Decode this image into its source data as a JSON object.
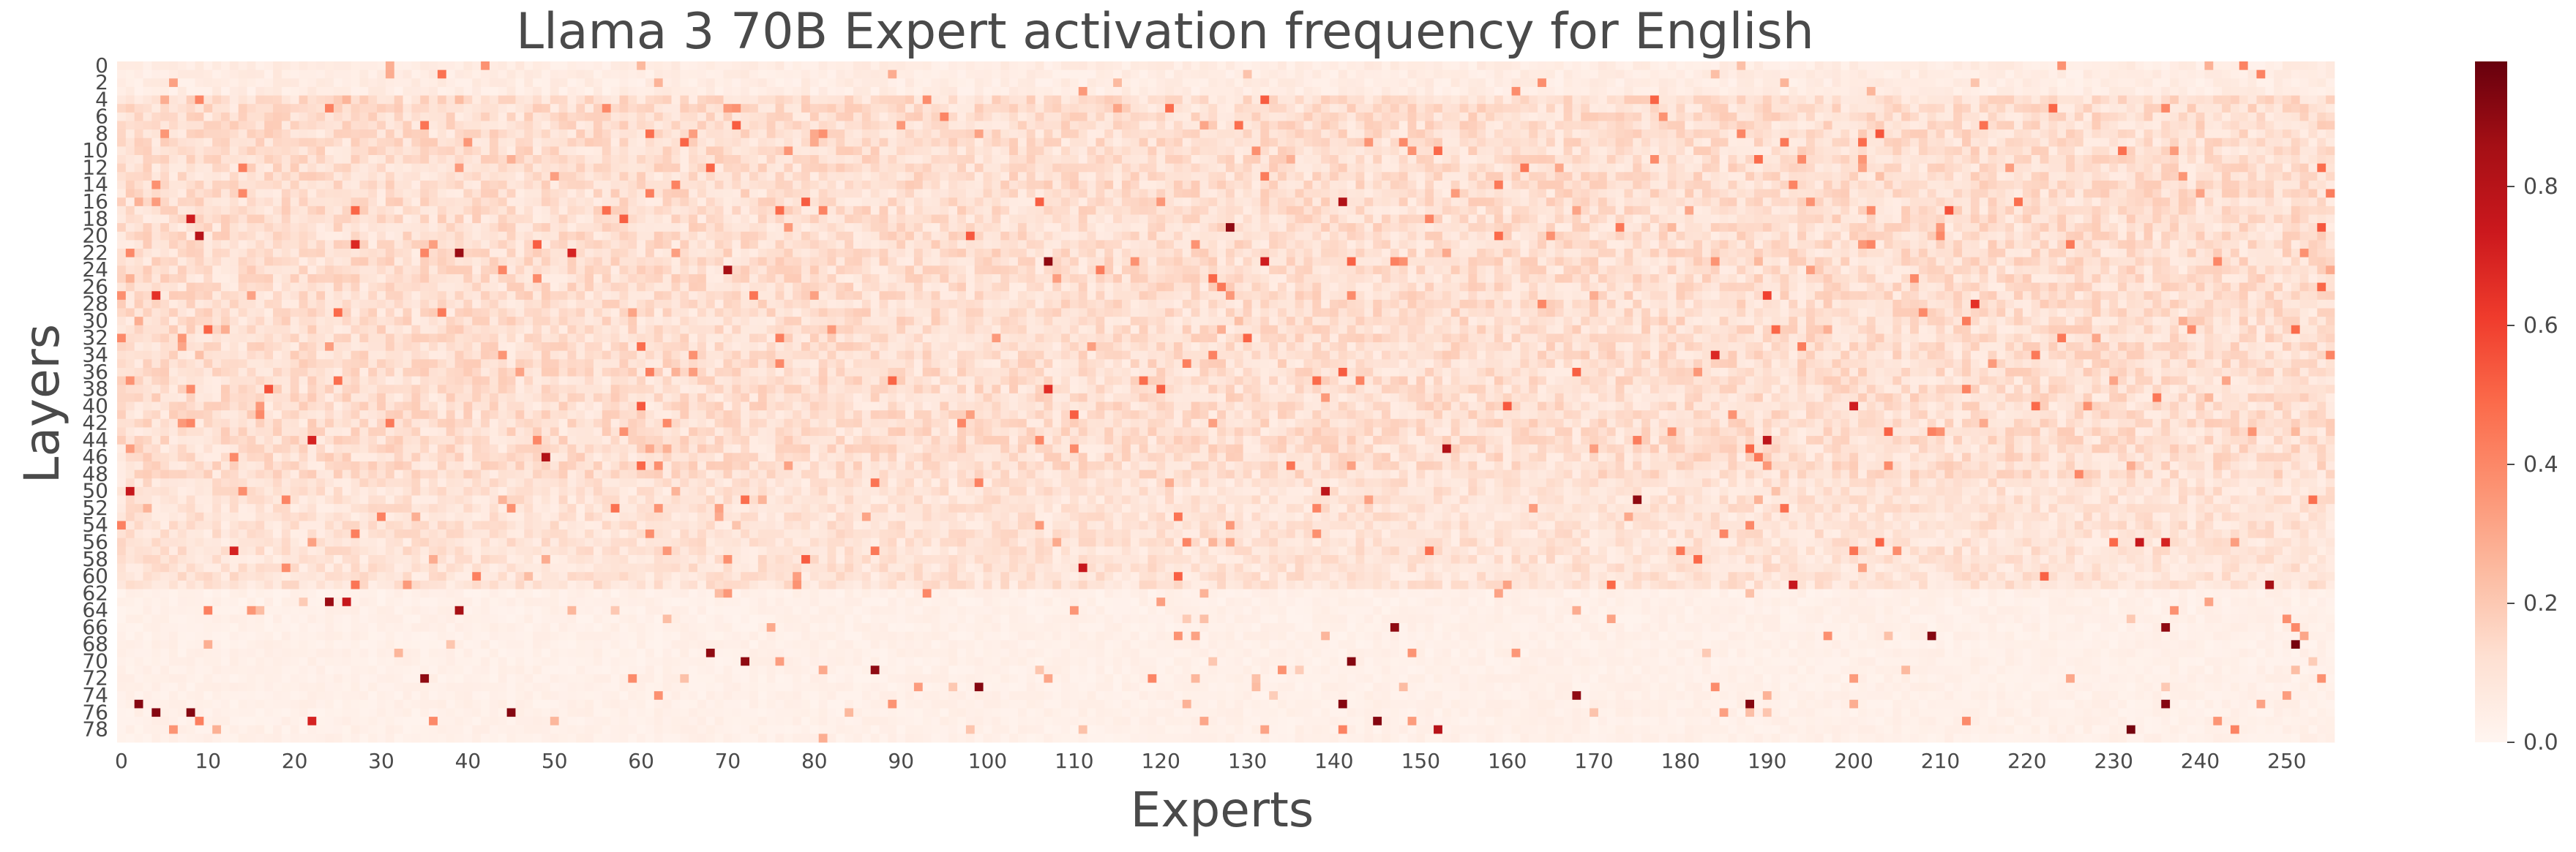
{
  "chart_data": {
    "type": "heatmap",
    "title": "Llama 3 70B Expert activation frequency for English",
    "xlabel": "Experts",
    "ylabel": "Layers",
    "n_experts": 256,
    "n_layers": 80,
    "x_tick_labels": [
      "0",
      "10",
      "20",
      "30",
      "40",
      "50",
      "60",
      "70",
      "80",
      "90",
      "100",
      "110",
      "120",
      "130",
      "140",
      "150",
      "160",
      "170",
      "180",
      "190",
      "200",
      "210",
      "220",
      "230",
      "240",
      "250"
    ],
    "y_tick_labels": [
      "0",
      "2",
      "4",
      "6",
      "8",
      "10",
      "12",
      "14",
      "16",
      "18",
      "20",
      "22",
      "24",
      "26",
      "28",
      "30",
      "32",
      "34",
      "36",
      "38",
      "40",
      "42",
      "44",
      "46",
      "48",
      "50",
      "52",
      "54",
      "56",
      "58",
      "60",
      "62",
      "64",
      "66",
      "68",
      "70",
      "72",
      "74",
      "76",
      "78"
    ],
    "colorbar": {
      "range": [
        0.0,
        0.98
      ],
      "tick_labels": [
        "0.0",
        "0.2",
        "0.4",
        "0.6",
        "0.8"
      ],
      "colormap": "Reds"
    },
    "grid": false,
    "layer_profile": {
      "description_levels": [
        {
          "layers": [
            0,
            3
          ],
          "mean": 0.05
        },
        {
          "layers": [
            4,
            48
          ],
          "mean": 0.12
        },
        {
          "layers": [
            49,
            61
          ],
          "mean": 0.1
        },
        {
          "layers": [
            62,
            79
          ],
          "mean": 0.03
        }
      ]
    },
    "hot_cells": [
      {
        "layer": 50,
        "expert": 1,
        "value": 0.75
      },
      {
        "layer": 44,
        "expert": 22,
        "value": 0.7
      },
      {
        "layer": 27,
        "expert": 4,
        "value": 0.65
      },
      {
        "layer": 18,
        "expert": 8,
        "value": 0.72
      },
      {
        "layer": 20,
        "expert": 9,
        "value": 0.8
      },
      {
        "layer": 21,
        "expert": 27,
        "value": 0.68
      },
      {
        "layer": 22,
        "expert": 39,
        "value": 0.88
      },
      {
        "layer": 22,
        "expert": 52,
        "value": 0.7
      },
      {
        "layer": 24,
        "expert": 70,
        "value": 0.85
      },
      {
        "layer": 23,
        "expert": 107,
        "value": 0.9
      },
      {
        "layer": 19,
        "expert": 128,
        "value": 0.9
      },
      {
        "layer": 23,
        "expert": 132,
        "value": 0.72
      },
      {
        "layer": 16,
        "expert": 141,
        "value": 0.82
      },
      {
        "layer": 27,
        "expert": 190,
        "value": 0.6
      },
      {
        "layer": 28,
        "expert": 214,
        "value": 0.65
      },
      {
        "layer": 34,
        "expert": 184,
        "value": 0.68
      },
      {
        "layer": 40,
        "expert": 200,
        "value": 0.72
      },
      {
        "layer": 38,
        "expert": 107,
        "value": 0.66
      },
      {
        "layer": 46,
        "expert": 49,
        "value": 0.82
      },
      {
        "layer": 45,
        "expert": 153,
        "value": 0.82
      },
      {
        "layer": 44,
        "expert": 190,
        "value": 0.78
      },
      {
        "layer": 51,
        "expert": 175,
        "value": 0.9
      },
      {
        "layer": 50,
        "expert": 139,
        "value": 0.78
      },
      {
        "layer": 56,
        "expert": 233,
        "value": 0.75
      },
      {
        "layer": 56,
        "expert": 236,
        "value": 0.7
      },
      {
        "layer": 57,
        "expert": 13,
        "value": 0.7
      },
      {
        "layer": 59,
        "expert": 111,
        "value": 0.75
      },
      {
        "layer": 61,
        "expert": 193,
        "value": 0.75
      },
      {
        "layer": 61,
        "expert": 248,
        "value": 0.85
      },
      {
        "layer": 63,
        "expert": 24,
        "value": 0.88
      },
      {
        "layer": 63,
        "expert": 26,
        "value": 0.75
      },
      {
        "layer": 64,
        "expert": 39,
        "value": 0.85
      },
      {
        "layer": 66,
        "expert": 147,
        "value": 0.9
      },
      {
        "layer": 66,
        "expert": 236,
        "value": 0.9
      },
      {
        "layer": 67,
        "expert": 209,
        "value": 0.92
      },
      {
        "layer": 68,
        "expert": 251,
        "value": 0.95
      },
      {
        "layer": 69,
        "expert": 68,
        "value": 0.9
      },
      {
        "layer": 70,
        "expert": 72,
        "value": 0.9
      },
      {
        "layer": 70,
        "expert": 142,
        "value": 0.92
      },
      {
        "layer": 71,
        "expert": 87,
        "value": 0.9
      },
      {
        "layer": 72,
        "expert": 35,
        "value": 0.9
      },
      {
        "layer": 73,
        "expert": 99,
        "value": 0.92
      },
      {
        "layer": 74,
        "expert": 168,
        "value": 0.9
      },
      {
        "layer": 75,
        "expert": 2,
        "value": 0.92
      },
      {
        "layer": 75,
        "expert": 141,
        "value": 0.92
      },
      {
        "layer": 75,
        "expert": 188,
        "value": 0.92
      },
      {
        "layer": 75,
        "expert": 236,
        "value": 0.92
      },
      {
        "layer": 76,
        "expert": 4,
        "value": 0.92
      },
      {
        "layer": 76,
        "expert": 8,
        "value": 0.92
      },
      {
        "layer": 76,
        "expert": 45,
        "value": 0.92
      },
      {
        "layer": 77,
        "expert": 145,
        "value": 0.92
      },
      {
        "layer": 77,
        "expert": 22,
        "value": 0.7
      },
      {
        "layer": 78,
        "expert": 232,
        "value": 0.95
      },
      {
        "layer": 78,
        "expert": 152,
        "value": 0.8
      }
    ]
  }
}
